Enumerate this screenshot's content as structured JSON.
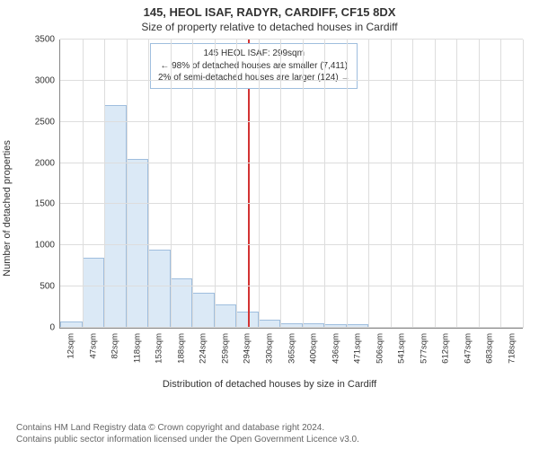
{
  "address_line": "145, HEOL ISAF, RADYR, CARDIFF, CF15 8DX",
  "subtitle": "Size of property relative to detached houses in Cardiff",
  "chart": {
    "type": "histogram",
    "ylabel": "Number of detached properties",
    "xlabel": "Distribution of detached houses by size in Cardiff",
    "ylim": [
      0,
      3500
    ],
    "ytick_step": 500,
    "x_categories": [
      "12sqm",
      "47sqm",
      "82sqm",
      "118sqm",
      "153sqm",
      "188sqm",
      "224sqm",
      "259sqm",
      "294sqm",
      "330sqm",
      "365sqm",
      "400sqm",
      "436sqm",
      "471sqm",
      "506sqm",
      "541sqm",
      "577sqm",
      "612sqm",
      "647sqm",
      "683sqm",
      "718sqm"
    ],
    "bar_values": [
      80,
      850,
      2700,
      2050,
      950,
      600,
      430,
      280,
      200,
      100,
      60,
      50,
      45,
      40,
      0,
      0,
      0,
      0,
      0,
      0,
      0
    ],
    "bar_color": "#dbe9f6",
    "bar_border": "#9fbede",
    "grid_color": "#dddddd",
    "marker": {
      "x_value": 299,
      "color": "#d33333"
    },
    "annotation": {
      "line1": "145 HEOL ISAF: 299sqm",
      "line2": "← 98% of detached houses are smaller (7,411)",
      "line3": "2% of semi-detached houses are larger (124) →",
      "border": "#9fbede"
    },
    "x_range": [
      12,
      718
    ]
  },
  "footer1": "Contains HM Land Registry data © Crown copyright and database right 2024.",
  "footer2": "Contains public sector information licensed under the Open Government Licence v3.0."
}
